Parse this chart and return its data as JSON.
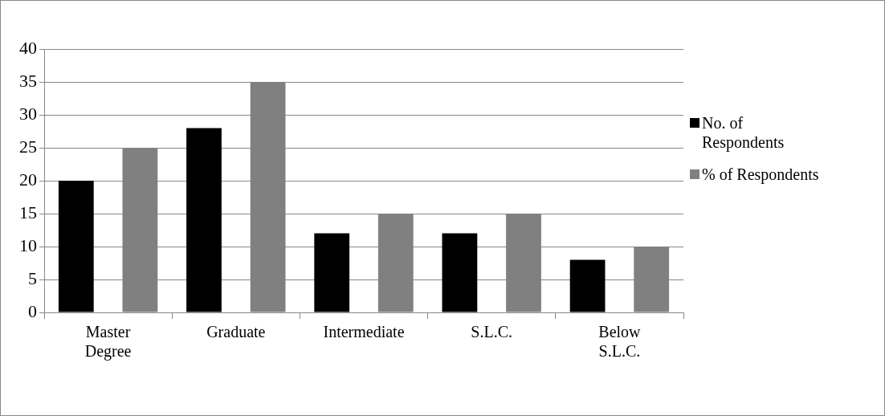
{
  "chart_data": {
    "type": "bar",
    "categories": [
      "Master Degree",
      "Graduate",
      "Intermediate",
      "S.L.C.",
      "Below S.L.C."
    ],
    "series": [
      {
        "name": "No. of Respondents",
        "color": "#000000",
        "values": [
          20,
          28,
          12,
          12,
          8
        ]
      },
      {
        "name": "% of Respondents",
        "color": "#808080",
        "values": [
          25,
          35,
          15,
          15,
          10
        ]
      }
    ],
    "ylim": [
      0,
      40
    ],
    "yticks": [
      0,
      5,
      10,
      15,
      20,
      25,
      30,
      35,
      40
    ],
    "grid": "y",
    "legend": "right"
  }
}
